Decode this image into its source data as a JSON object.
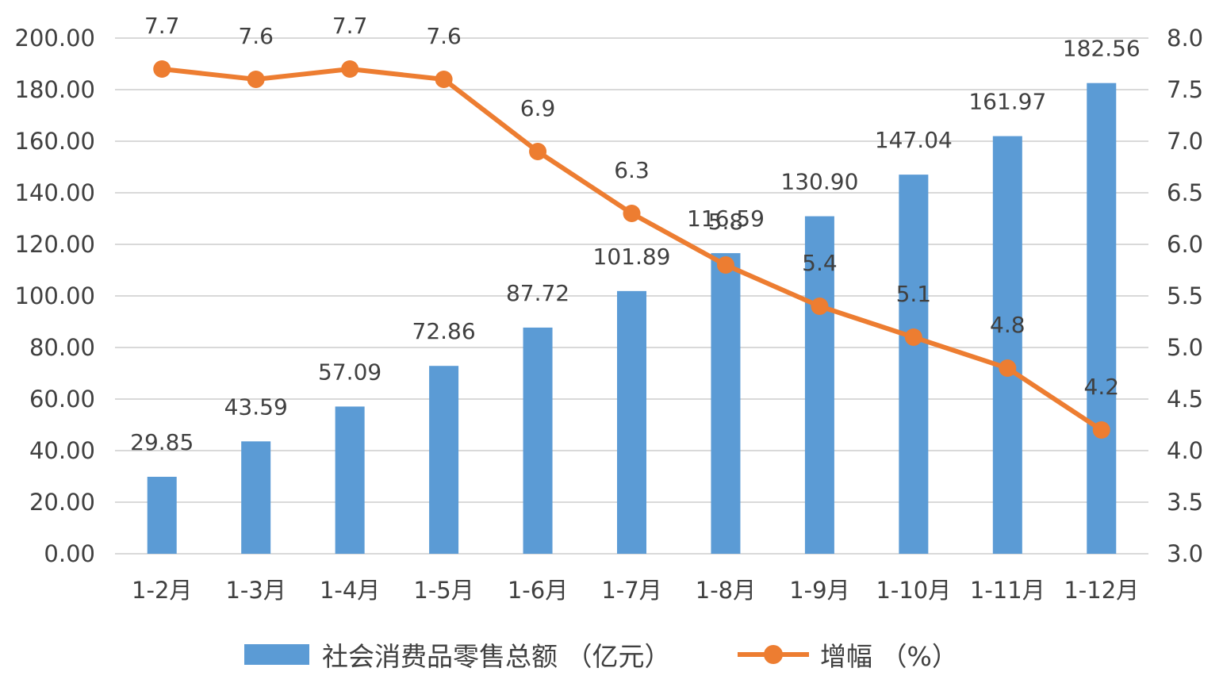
{
  "colors": {
    "bar": "#5B9BD5",
    "line": "#ED7D31",
    "grid": "#D9D9D9",
    "text": "#404040"
  },
  "chart_data": {
    "type": "bar",
    "categories": [
      "1-2月",
      "1-3月",
      "1-4月",
      "1-5月",
      "1-6月",
      "1-7月",
      "1-8月",
      "1-9月",
      "1-10月",
      "1-11月",
      "1-12月"
    ],
    "series": [
      {
        "name": "社会消费品零售总额 （亿元）",
        "type": "bar",
        "axis": "left",
        "values": [
          29.85,
          43.59,
          57.09,
          72.86,
          87.72,
          101.89,
          116.59,
          130.9,
          147.04,
          161.97,
          182.56
        ],
        "labels": [
          "29.85",
          "43.59",
          "57.09",
          "72.86",
          "87.72",
          "101.89",
          "116.59",
          "130.90",
          "147.04",
          "161.97",
          "182.56"
        ]
      },
      {
        "name": "增幅 （%）",
        "type": "line",
        "axis": "right",
        "values": [
          7.7,
          7.6,
          7.7,
          7.6,
          6.9,
          6.3,
          5.8,
          5.4,
          5.1,
          4.8,
          4.2
        ],
        "labels": [
          "7.7",
          "7.6",
          "7.7",
          "7.6",
          "6.9",
          "6.3",
          "5.8",
          "5.4",
          "5.1",
          "4.8",
          "4.2"
        ]
      }
    ],
    "y_left": {
      "min": 0,
      "max": 200,
      "ticks": [
        "0.00",
        "20.00",
        "40.00",
        "60.00",
        "80.00",
        "100.00",
        "120.00",
        "140.00",
        "160.00",
        "180.00",
        "200.00"
      ]
    },
    "y_right": {
      "min": 3.0,
      "max": 8.0,
      "ticks": [
        "3.0",
        "3.5",
        "4.0",
        "4.5",
        "5.0",
        "5.5",
        "6.0",
        "6.5",
        "7.0",
        "7.5",
        "8.0"
      ]
    },
    "grid": true,
    "legend": "bottom"
  }
}
